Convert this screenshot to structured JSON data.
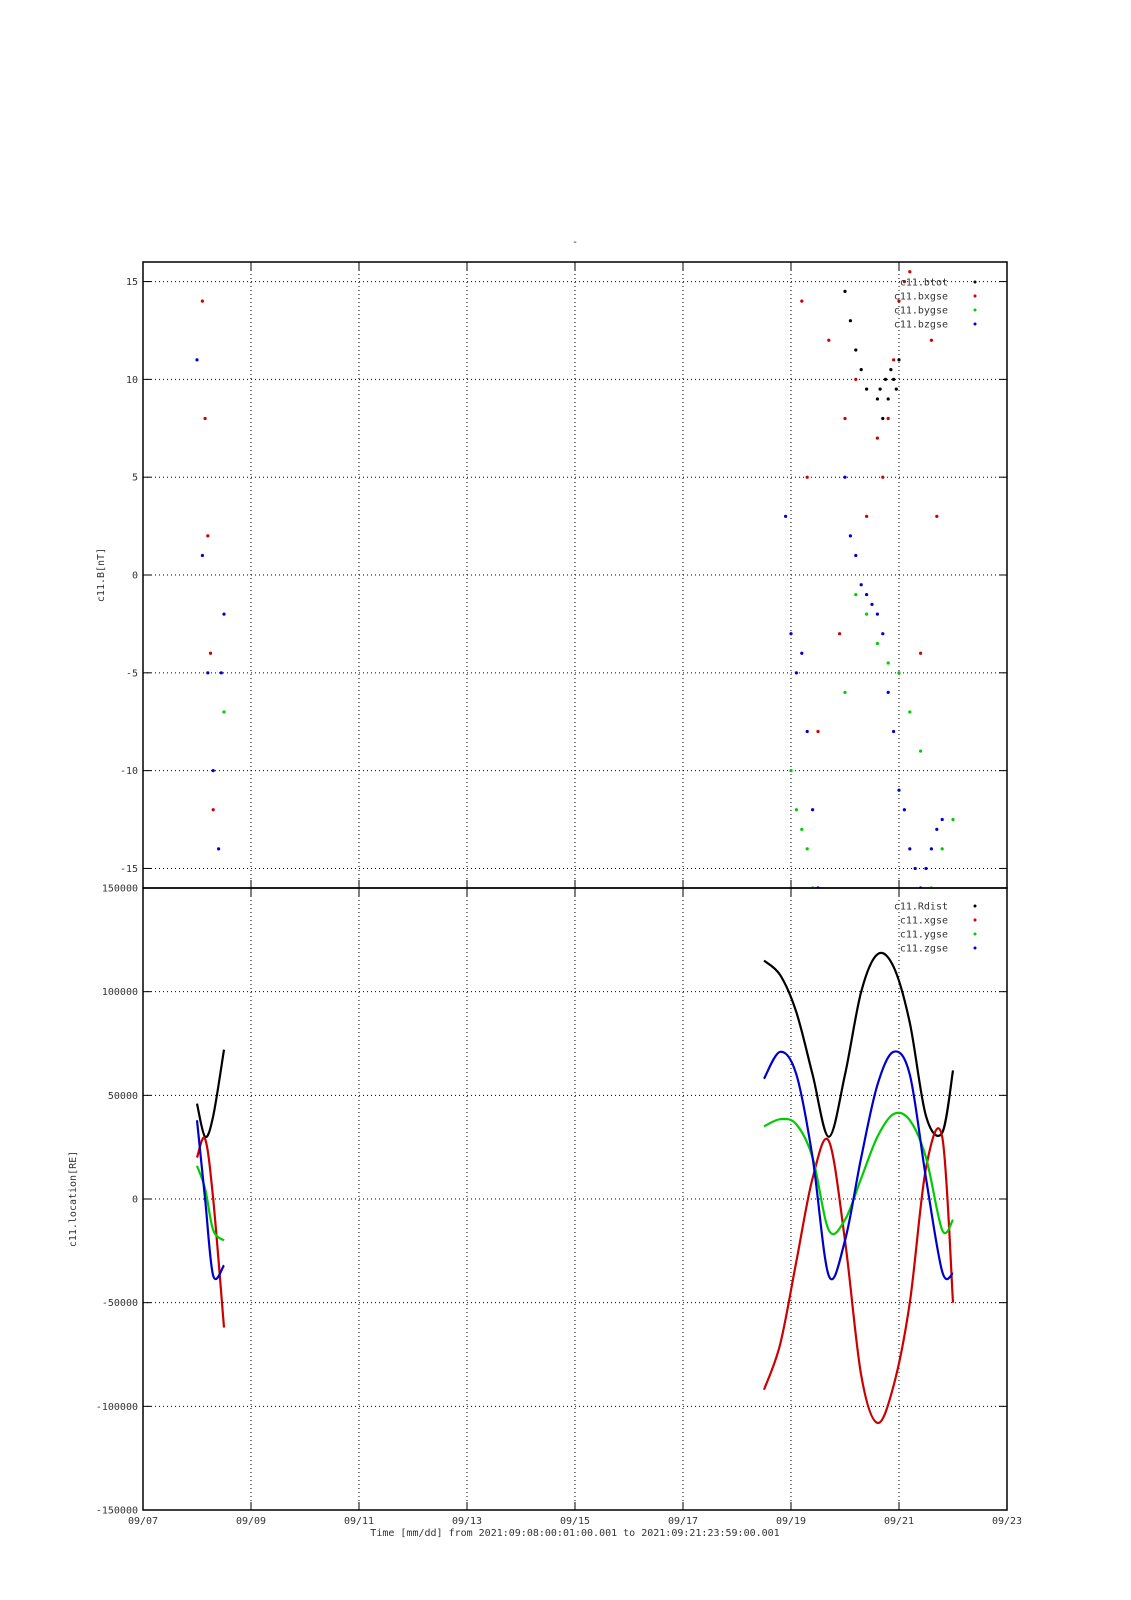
{
  "page_title": "-",
  "footer": {
    "time_label": "Time [mm/dd]  from 2021:09:08:00:01:00.001  to  2021:09:21:23:59:00.001"
  },
  "chart_data": [
    {
      "type": "scatter",
      "ylabel": "c11.B[nT]",
      "ylim": [
        -16,
        16
      ],
      "yticks": [
        -15,
        -10,
        -5,
        0,
        5,
        10,
        15
      ],
      "x_unit": "days since 09/07",
      "xlim": [
        0,
        16
      ],
      "xtick_labels": [
        "09/07",
        "09/09",
        "09/11",
        "09/13",
        "09/15",
        "09/17",
        "09/19",
        "09/21",
        "09/23"
      ],
      "grid": true,
      "legend": "top-right",
      "series": [
        {
          "name": "c11.btot",
          "color": "#000000",
          "x": [
            13.0,
            13.1,
            13.2,
            13.3,
            13.4,
            13.6,
            13.65,
            13.7,
            13.75,
            13.8,
            13.85,
            13.9,
            13.95,
            14.0
          ],
          "y": [
            14.5,
            13.0,
            11.5,
            10.5,
            9.5,
            9.0,
            9.5,
            8.0,
            10.0,
            9.0,
            10.5,
            10.0,
            9.5,
            11.0
          ]
        },
        {
          "name": "c11.bxgse",
          "color": "#cc0000",
          "x": [
            1.1,
            1.15,
            1.2,
            1.25,
            1.3,
            12.2,
            12.3,
            12.5,
            12.7,
            12.9,
            13.0,
            13.2,
            13.4,
            13.6,
            13.7,
            13.8,
            13.9,
            14.0,
            14.1,
            14.2,
            14.4,
            14.6,
            14.7
          ],
          "y": [
            14.0,
            8.0,
            2.0,
            -4.0,
            -12.0,
            14.0,
            5.0,
            -8.0,
            12.0,
            -3.0,
            8.0,
            10.0,
            3.0,
            7.0,
            5.0,
            8.0,
            11.0,
            14.0,
            15.0,
            15.5,
            -4.0,
            12.0,
            3.0
          ]
        },
        {
          "name": "c11.bygse",
          "color": "#00cc00",
          "x": [
            1.5,
            12.0,
            12.1,
            12.2,
            12.3,
            12.4,
            13.0,
            13.2,
            13.4,
            13.6,
            13.8,
            14.0,
            14.2,
            14.4,
            14.6,
            14.8,
            15.0
          ],
          "y": [
            -7.0,
            -10.0,
            -12.0,
            -13.0,
            -14.0,
            -16.0,
            -6.0,
            -1.0,
            -2.0,
            -3.5,
            -4.5,
            -5.0,
            -7.0,
            -9.0,
            -16.0,
            -14.0,
            -12.5
          ]
        },
        {
          "name": "c11.bzgse",
          "color": "#0000cc",
          "x": [
            1.0,
            1.1,
            1.2,
            1.3,
            1.4,
            1.45,
            1.5,
            11.9,
            12.0,
            12.1,
            12.2,
            12.3,
            12.4,
            12.5,
            13.0,
            13.1,
            13.2,
            13.3,
            13.4,
            13.5,
            13.6,
            13.7,
            13.8,
            13.9,
            14.0,
            14.1,
            14.2,
            14.3,
            14.4,
            14.5,
            14.6,
            14.7,
            14.8
          ],
          "y": [
            11.0,
            1.0,
            -5.0,
            -10.0,
            -14.0,
            -5.0,
            -2.0,
            3.0,
            -3.0,
            -5.0,
            -4.0,
            -8.0,
            -12.0,
            -16.0,
            5.0,
            2.0,
            1.0,
            -0.5,
            -1.0,
            -1.5,
            -2.0,
            -3.0,
            -6.0,
            -8.0,
            -11.0,
            -12.0,
            -14.0,
            -15.0,
            -16.0,
            -15.0,
            -14.0,
            -13.0,
            -12.5
          ]
        }
      ]
    },
    {
      "type": "line",
      "ylabel": "c11.location[RE]",
      "ylim": [
        -150000,
        150000
      ],
      "yticks": [
        -150000,
        -100000,
        -50000,
        0,
        50000,
        100000,
        150000
      ],
      "x_unit": "days since 09/07",
      "xlim": [
        0,
        16
      ],
      "xtick_labels": [
        "09/07",
        "09/09",
        "09/11",
        "09/13",
        "09/15",
        "09/17",
        "09/19",
        "09/21",
        "09/23"
      ],
      "grid": true,
      "legend": "top-right",
      "series": [
        {
          "name": "c11.Rdist",
          "color": "#000000",
          "segments": [
            {
              "x": [
                1.0,
                1.15,
                1.3,
                1.5
              ],
              "y": [
                46000,
                30000,
                40000,
                72000
              ]
            },
            {
              "x": [
                11.5,
                11.8,
                12.1,
                12.4,
                12.7,
                13.0,
                13.3,
                13.6,
                13.9,
                14.2,
                14.5,
                14.8,
                15.0
              ],
              "y": [
                115000,
                108000,
                90000,
                60000,
                30000,
                60000,
                100000,
                118000,
                112000,
                85000,
                40000,
                32000,
                62000
              ]
            }
          ]
        },
        {
          "name": "c11.xgse",
          "color": "#cc0000",
          "segments": [
            {
              "x": [
                1.0,
                1.15,
                1.3,
                1.5
              ],
              "y": [
                20000,
                29000,
                0,
                -62000
              ]
            },
            {
              "x": [
                11.5,
                11.8,
                12.1,
                12.4,
                12.7,
                13.0,
                13.3,
                13.6,
                13.9,
                14.2,
                14.5,
                14.8,
                15.0
              ],
              "y": [
                -92000,
                -70000,
                -30000,
                10000,
                28000,
                -20000,
                -85000,
                -108000,
                -90000,
                -50000,
                15000,
                30000,
                -50000
              ]
            }
          ]
        },
        {
          "name": "c11.ygse",
          "color": "#00cc00",
          "segments": [
            {
              "x": [
                1.0,
                1.15,
                1.3,
                1.5
              ],
              "y": [
                16000,
                5000,
                -15000,
                -20000
              ]
            },
            {
              "x": [
                11.5,
                11.8,
                12.1,
                12.4,
                12.7,
                13.0,
                13.3,
                13.6,
                13.9,
                14.2,
                14.5,
                14.8,
                15.0
              ],
              "y": [
                35000,
                38500,
                36000,
                20000,
                -15000,
                -10000,
                10000,
                30000,
                41000,
                38000,
                20000,
                -15000,
                -10000
              ]
            }
          ]
        },
        {
          "name": "c11.zgse",
          "color": "#0000cc",
          "segments": [
            {
              "x": [
                1.0,
                1.15,
                1.3,
                1.5
              ],
              "y": [
                38000,
                0,
                -37000,
                -32000
              ]
            },
            {
              "x": [
                11.5,
                11.8,
                12.1,
                12.4,
                12.7,
                13.0,
                13.3,
                13.6,
                13.9,
                14.2,
                14.5,
                14.8,
                15.0
              ],
              "y": [
                58000,
                71000,
                60000,
                20000,
                -37000,
                -20000,
                20000,
                55000,
                71000,
                60000,
                10000,
                -35000,
                -36000
              ]
            }
          ]
        }
      ]
    }
  ]
}
